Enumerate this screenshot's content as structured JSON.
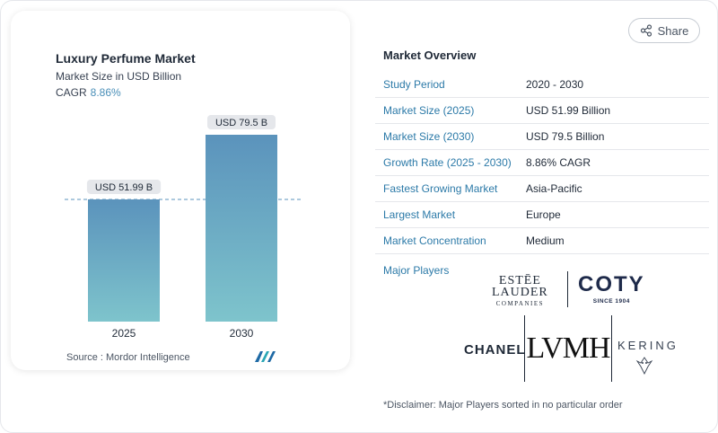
{
  "chart": {
    "title": "Luxury Perfume Market",
    "subtitle": "Market Size in USD Billion",
    "cagr_label": "CAGR",
    "cagr_value": "8.86%",
    "source": "Source :  Mordor Intelligence",
    "logo": "mordor-intelligence-logo"
  },
  "chart_data": {
    "type": "bar",
    "categories": [
      "2025",
      "2030"
    ],
    "values": [
      51.99,
      79.5
    ],
    "data_labels": [
      "USD 51.99 B",
      "USD 79.5 B"
    ],
    "title": "Luxury Perfume Market",
    "ylabel": "Market Size in USD Billion",
    "ylim": [
      0,
      79.5
    ],
    "reference_line": 51.99,
    "colors": [
      "#5b93bc",
      "#7ec4cc"
    ]
  },
  "overview": {
    "title": "Market Overview",
    "rows": [
      {
        "key": "Study Period",
        "value": "2020 - 2030"
      },
      {
        "key": "Market Size (2025)",
        "value": "USD 51.99 Billion"
      },
      {
        "key": "Market Size (2030)",
        "value": "USD 79.5 Billion"
      },
      {
        "key": "Growth Rate (2025 - 2030)",
        "value": "8.86% CAGR"
      },
      {
        "key": "Fastest Growing Market",
        "value": "Asia-Pacific"
      },
      {
        "key": "Largest Market",
        "value": "Europe"
      },
      {
        "key": "Market Concentration",
        "value": "Medium"
      }
    ],
    "players_label": "Major Players"
  },
  "players": {
    "estee": [
      "ESTĒE",
      "LAUDER",
      "COMPANIES"
    ],
    "coty": [
      "COTY",
      "SINCE 1904"
    ],
    "chanel": "CHANEL",
    "lvmh": "LVMH",
    "kering": "KERING"
  },
  "share": {
    "label": "Share",
    "icon": "share-icon"
  },
  "disclaimer": "*Disclaimer: Major Players sorted in no particular order"
}
